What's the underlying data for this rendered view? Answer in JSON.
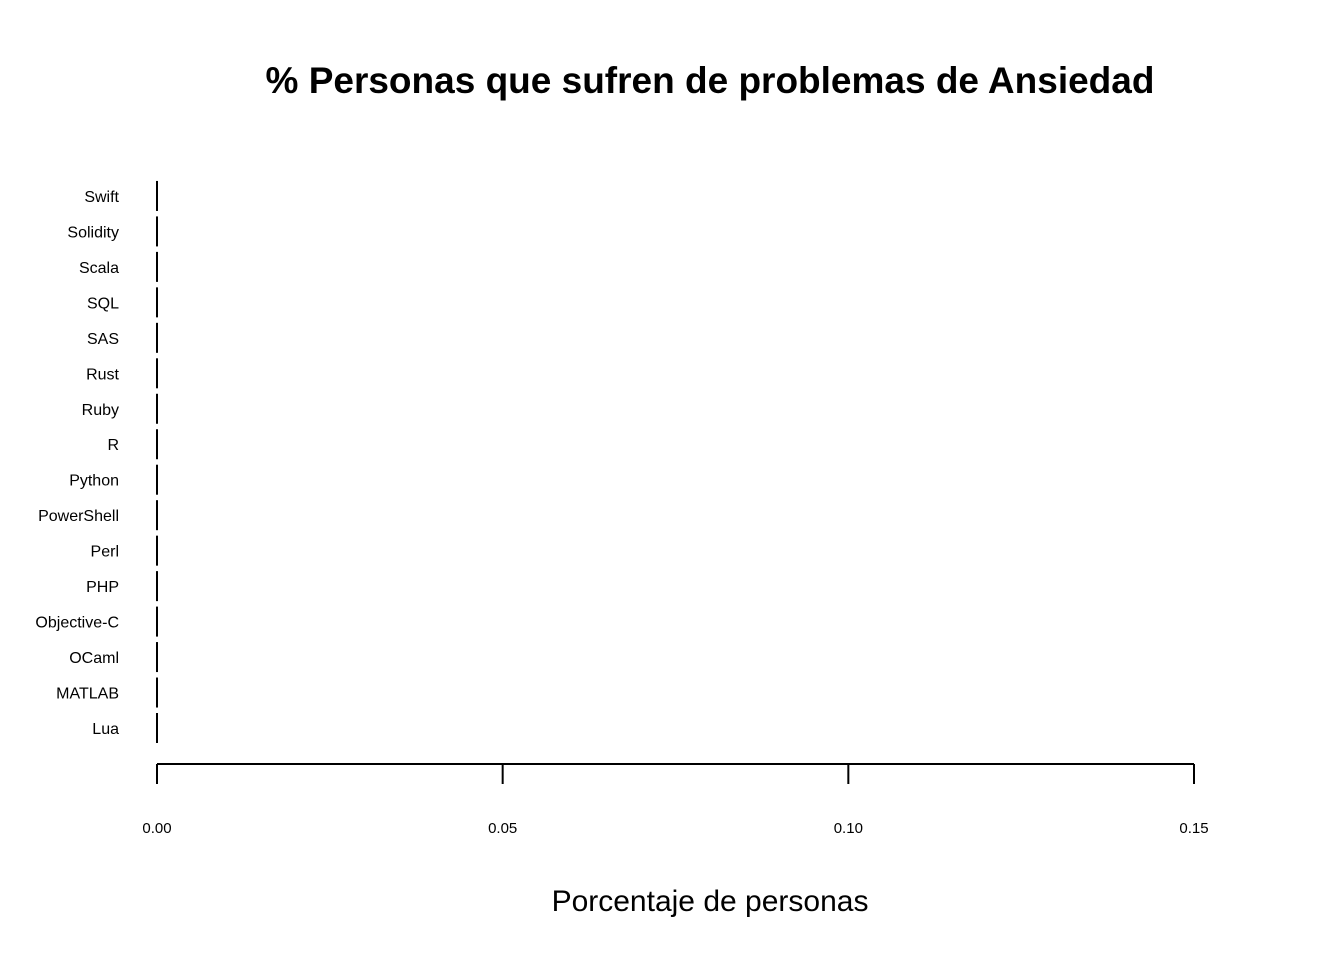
{
  "chart_data": {
    "type": "bar",
    "orientation": "horizontal",
    "title": "% Personas que sufren de problemas de Ansiedad",
    "xlabel": "Porcentaje de personas",
    "ylabel": "",
    "categories": [
      "Lua",
      "MATLAB",
      "OCaml",
      "Objective-C",
      "PHP",
      "Perl",
      "PowerShell",
      "Python",
      "R",
      "Ruby",
      "Rust",
      "SAS",
      "SQL",
      "Scala",
      "Solidity",
      "Swift"
    ],
    "values": [
      0,
      0,
      0,
      0,
      0,
      0,
      0,
      0,
      0,
      0,
      0,
      0,
      0,
      0,
      0,
      0
    ],
    "xlim": [
      0,
      0.15
    ],
    "xticks": [
      0,
      0.05,
      0.1,
      0.15
    ],
    "xtick_labels": [
      "0.00",
      "0.05",
      "0.10",
      "0.15"
    ],
    "grid": false,
    "bar_color": "#000000"
  }
}
